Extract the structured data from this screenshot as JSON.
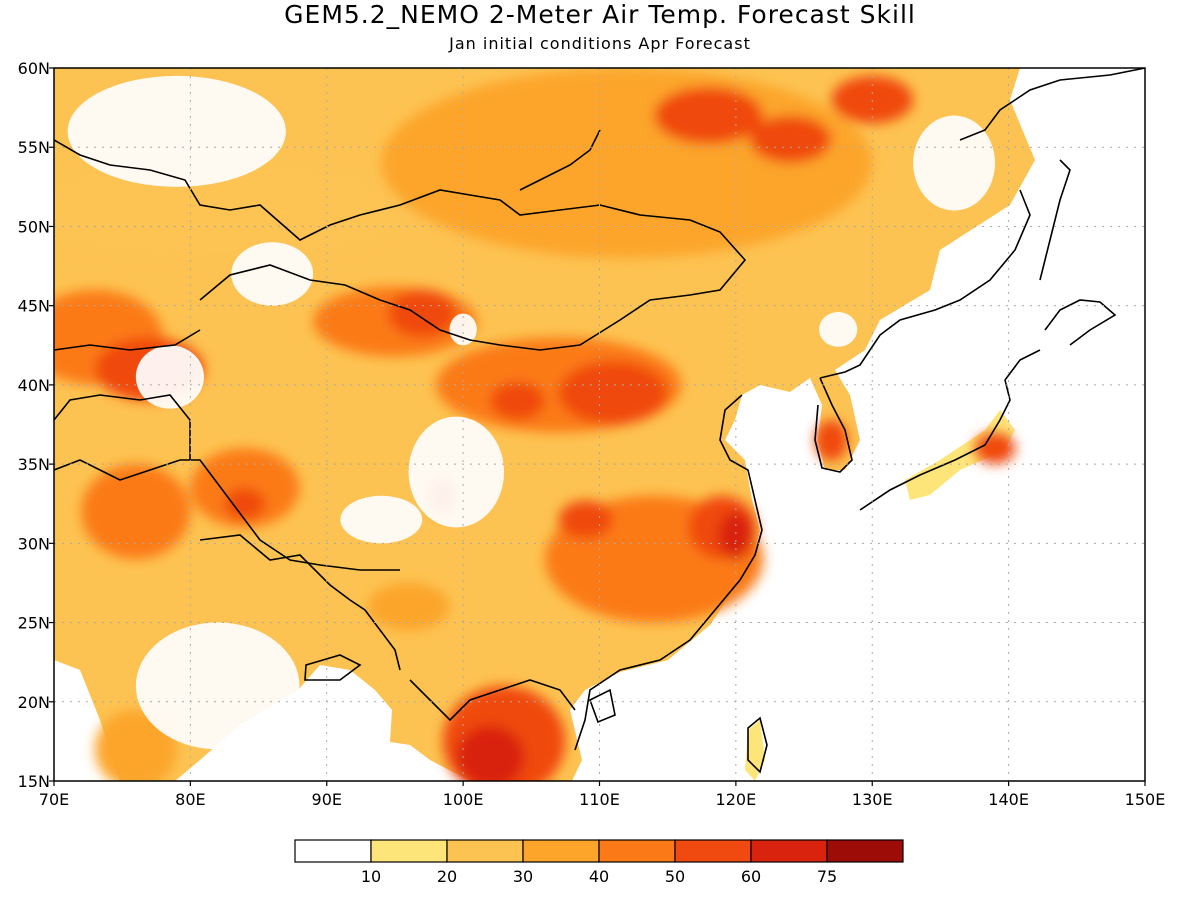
{
  "title": "GEM5.2_NEMO 2-Meter Air Temp. Forecast Skill",
  "subtitle": "Jan initial conditions  Apr Forecast",
  "map": {
    "lon_range": [
      70,
      150
    ],
    "lat_range": [
      15,
      60
    ],
    "lon_ticks": [
      "70E",
      "80E",
      "90E",
      "100E",
      "110E",
      "120E",
      "130E",
      "140E",
      "150E"
    ],
    "lat_ticks": [
      "15N",
      "20N",
      "25N",
      "30N",
      "35N",
      "40N",
      "45N",
      "50N",
      "55N",
      "60N"
    ],
    "grid": "dotted",
    "ocean_color": "#ffffff"
  },
  "colorbar": {
    "labels": [
      "10",
      "20",
      "30",
      "40",
      "50",
      "60",
      "75"
    ],
    "colors": [
      "#ffffff",
      "#fee57a",
      "#fdc352",
      "#fca52a",
      "#fb7a17",
      "#f04a11",
      "#d9230f",
      "#9e0c08"
    ]
  },
  "skill_regions": [
    {
      "lon": 82,
      "lat": 51,
      "rx": 14,
      "ry": 3,
      "level": 2
    },
    {
      "lon": 112,
      "lat": 54,
      "rx": 18,
      "ry": 6,
      "level": 3
    },
    {
      "lon": 118,
      "lat": 57,
      "rx": 4,
      "ry": 1.8,
      "level": 5
    },
    {
      "lon": 124,
      "lat": 55.5,
      "rx": 3,
      "ry": 1.5,
      "level": 5
    },
    {
      "lon": 130,
      "lat": 58,
      "rx": 3,
      "ry": 1.5,
      "level": 5
    },
    {
      "lon": 73,
      "lat": 43,
      "rx": 5,
      "ry": 3,
      "level": 4
    },
    {
      "lon": 77,
      "lat": 41,
      "rx": 4,
      "ry": 2,
      "level": 5
    },
    {
      "lon": 95,
      "lat": 44,
      "rx": 6,
      "ry": 2.2,
      "level": 4
    },
    {
      "lon": 97,
      "lat": 44.5,
      "rx": 2.5,
      "ry": 1.5,
      "level": 5
    },
    {
      "lon": 107,
      "lat": 40,
      "rx": 9,
      "ry": 3,
      "level": 4
    },
    {
      "lon": 111,
      "lat": 39.5,
      "rx": 4,
      "ry": 2,
      "level": 5
    },
    {
      "lon": 104,
      "lat": 39,
      "rx": 2,
      "ry": 1.2,
      "level": 5
    },
    {
      "lon": 84,
      "lat": 33.5,
      "rx": 4,
      "ry": 2.5,
      "level": 4
    },
    {
      "lon": 84,
      "lat": 32.5,
      "rx": 1.5,
      "ry": 1,
      "level": 5
    },
    {
      "lon": 76,
      "lat": 32,
      "rx": 4,
      "ry": 3,
      "level": 4
    },
    {
      "lon": 114,
      "lat": 29,
      "rx": 8,
      "ry": 4,
      "level": 4
    },
    {
      "lon": 119,
      "lat": 31,
      "rx": 2.5,
      "ry": 2,
      "level": 5
    },
    {
      "lon": 120,
      "lat": 30.5,
      "rx": 1.3,
      "ry": 1.5,
      "level": 6
    },
    {
      "lon": 109,
      "lat": 31.5,
      "rx": 2,
      "ry": 1.2,
      "level": 5
    },
    {
      "lon": 98.5,
      "lat": 33,
      "rx": 1,
      "ry": 1.2,
      "level": 5
    },
    {
      "lon": 103,
      "lat": 17.5,
      "rx": 4.5,
      "ry": 3.5,
      "level": 5
    },
    {
      "lon": 102,
      "lat": 16.5,
      "rx": 2.5,
      "ry": 2,
      "level": 6
    },
    {
      "lon": 127,
      "lat": 36.5,
      "rx": 1.2,
      "ry": 1.3,
      "level": 5
    },
    {
      "lon": 139,
      "lat": 36,
      "rx": 1.5,
      "ry": 1,
      "level": 5
    },
    {
      "lon": 76,
      "lat": 17,
      "rx": 3,
      "ry": 2.5,
      "level": 3
    },
    {
      "lon": 96,
      "lat": 26,
      "rx": 3,
      "ry": 1.5,
      "level": 3
    }
  ],
  "no_skill_regions": [
    {
      "lon": 79,
      "lat": 56,
      "rx": 8,
      "ry": 3.5
    },
    {
      "lon": 86,
      "lat": 47,
      "rx": 3,
      "ry": 2
    },
    {
      "lon": 78.5,
      "lat": 40.5,
      "rx": 2.5,
      "ry": 2
    },
    {
      "lon": 99.5,
      "lat": 34.5,
      "rx": 3.5,
      "ry": 3.5
    },
    {
      "lon": 94,
      "lat": 31.5,
      "rx": 3,
      "ry": 1.5
    },
    {
      "lon": 82,
      "lat": 21,
      "rx": 6,
      "ry": 4
    },
    {
      "lon": 127.5,
      "lat": 43.5,
      "rx": 1.4,
      "ry": 1.1
    },
    {
      "lon": 136,
      "lat": 54,
      "rx": 3,
      "ry": 3
    },
    {
      "lon": 100,
      "lat": 43.5,
      "rx": 1,
      "ry": 1
    }
  ]
}
